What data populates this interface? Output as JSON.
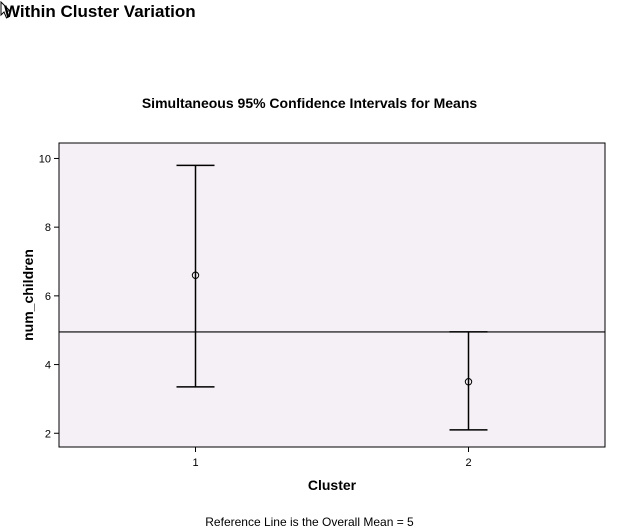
{
  "section_title": "Within Cluster Variation",
  "footnote": "Reference Line is the Overall Mean = 5",
  "colors": {
    "plot_background": "#f5f0f5",
    "axis": "#000000",
    "reference_line": "#000000"
  },
  "chart_data": {
    "type": "errorbar",
    "title": "Simultaneous 95% Confidence Intervals for Means",
    "xlabel": "Cluster",
    "ylabel": "num_children",
    "categories": [
      "1",
      "2"
    ],
    "means": [
      6.6,
      3.5
    ],
    "lower": [
      3.35,
      2.1
    ],
    "upper": [
      9.8,
      4.95
    ],
    "reference_line": 4.95,
    "ylim": [
      1.6,
      10.45
    ],
    "yticks": [
      2,
      4,
      6,
      8,
      10
    ],
    "grid": false
  }
}
